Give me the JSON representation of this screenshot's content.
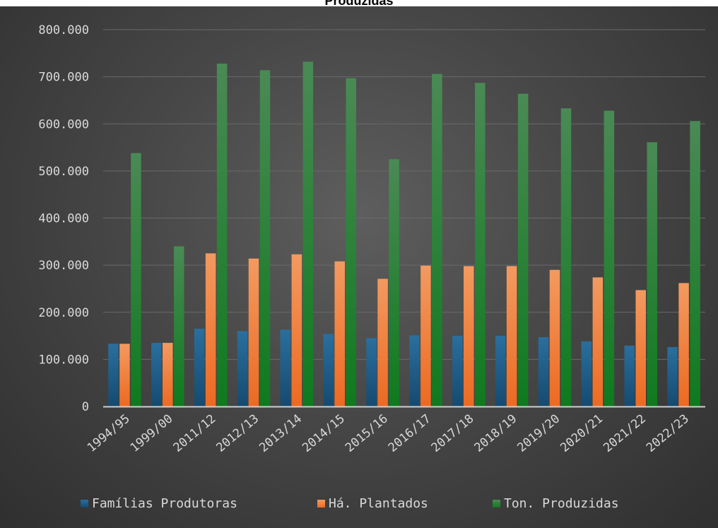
{
  "chart_data": {
    "type": "bar",
    "title": "Produzidas",
    "xlabel": "",
    "ylabel": "",
    "ylim": [
      0,
      800000
    ],
    "yticks": [
      "0",
      "100.000",
      "200.000",
      "300.000",
      "400.000",
      "500.000",
      "600.000",
      "700.000",
      "800.000"
    ],
    "grid": true,
    "legend_position": "bottom",
    "categories": [
      "1994/95",
      "1999/00",
      "2011/12",
      "2012/13",
      "2013/14",
      "2014/15",
      "2015/16",
      "2016/17",
      "2017/18",
      "2018/19",
      "2019/20",
      "2020/21",
      "2021/22",
      "2022/23"
    ],
    "series": [
      {
        "name": "Famílias Produtoras",
        "color": "#1f5a85",
        "values": [
          133000,
          135000,
          165000,
          160000,
          163000,
          154000,
          145000,
          151000,
          150000,
          150000,
          147000,
          138000,
          129000,
          126000
        ]
      },
      {
        "name": "Há. Plantados",
        "color": "#ef7e3a",
        "values": [
          133000,
          135000,
          325000,
          314000,
          323000,
          308000,
          271000,
          299000,
          298000,
          298000,
          290000,
          274000,
          247000,
          262000
        ]
      },
      {
        "name": "Ton. Produzidas",
        "color": "#2e8a38",
        "values": [
          538000,
          340000,
          728000,
          714000,
          732000,
          697000,
          525000,
          706000,
          687000,
          664000,
          633000,
          628000,
          561000,
          606000
        ]
      }
    ]
  }
}
